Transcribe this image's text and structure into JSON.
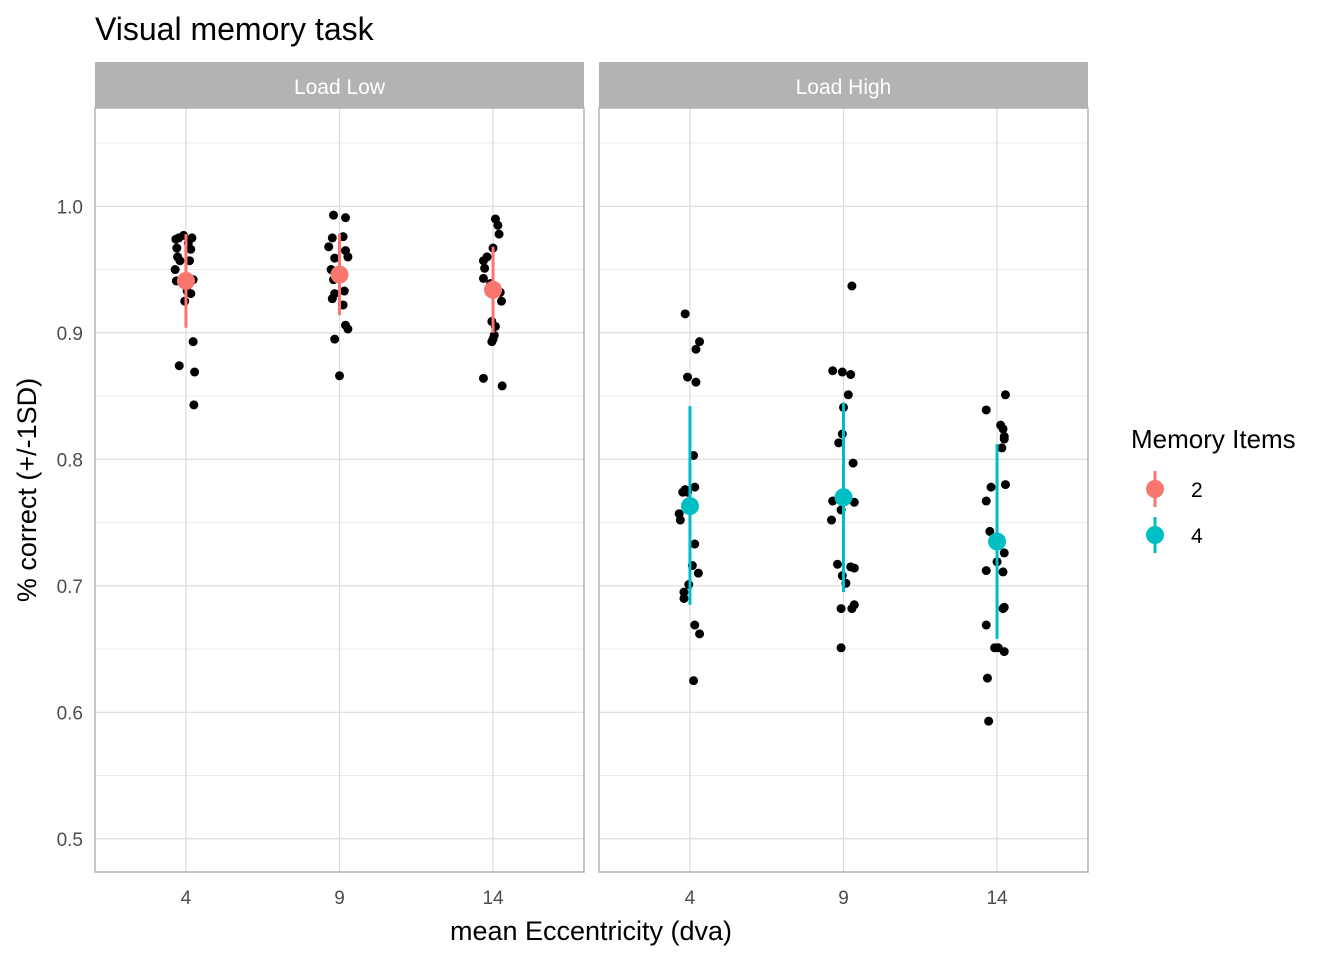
{
  "chart_data": {
    "type": "scatter",
    "title": "Visual memory task",
    "xlabel": "mean Eccentricity (dva)",
    "ylabel": "% correct (+/-1SD)",
    "x_ticks": [
      "4",
      "9",
      "14"
    ],
    "y_ticks": [
      "0.5",
      "0.6",
      "0.7",
      "0.8",
      "0.9",
      "1.0"
    ],
    "ylim": [
      0.475,
      1.078
    ],
    "grid": true,
    "legend": {
      "title": "Memory Items",
      "position": "right",
      "items": [
        {
          "label": "2",
          "color": "#F8766D"
        },
        {
          "label": "4",
          "color": "#00BFC4"
        }
      ]
    },
    "panels": [
      {
        "label": "Load Low",
        "memory_items": "2",
        "color": "#F8766D",
        "summary": [
          {
            "x": 4,
            "mean": 0.941,
            "sd_low": 0.904,
            "sd_high": 0.978
          },
          {
            "x": 9,
            "mean": 0.946,
            "sd_low": 0.914,
            "sd_high": 0.978
          },
          {
            "x": 14,
            "mean": 0.934,
            "sd_low": 0.9,
            "sd_high": 0.968
          }
        ],
        "points": [
          {
            "x": 4,
            "jx": -0.42,
            "y": 0.974
          },
          {
            "x": 4,
            "jx": -0.38,
            "y": 0.967
          },
          {
            "x": 4,
            "jx": -0.35,
            "y": 0.96
          },
          {
            "x": 4,
            "jx": -0.45,
            "y": 0.95
          },
          {
            "x": 4,
            "jx": -0.4,
            "y": 0.941
          },
          {
            "x": 4,
            "jx": -0.3,
            "y": 0.975
          },
          {
            "x": 4,
            "jx": -0.25,
            "y": 0.957
          },
          {
            "x": 4,
            "jx": -0.1,
            "y": 0.977
          },
          {
            "x": 4,
            "jx": 0.1,
            "y": 0.971
          },
          {
            "x": 4,
            "jx": 0.25,
            "y": 0.975
          },
          {
            "x": 4,
            "jx": 0.2,
            "y": 0.966
          },
          {
            "x": 4,
            "jx": 0.15,
            "y": 0.957
          },
          {
            "x": 4,
            "jx": 0.3,
            "y": 0.942
          },
          {
            "x": 4,
            "jx": 0.05,
            "y": 0.933
          },
          {
            "x": 4,
            "jx": -0.05,
            "y": 0.925
          },
          {
            "x": 4,
            "jx": 0.2,
            "y": 0.931
          },
          {
            "x": 4,
            "jx": 0.3,
            "y": 0.893
          },
          {
            "x": 4,
            "jx": -0.28,
            "y": 0.874
          },
          {
            "x": 4,
            "jx": 0.36,
            "y": 0.869
          },
          {
            "x": 4,
            "jx": 0.33,
            "y": 0.843
          },
          {
            "x": 9,
            "jx": -0.25,
            "y": 0.993
          },
          {
            "x": 9,
            "jx": 0.25,
            "y": 0.991
          },
          {
            "x": 9,
            "jx": -0.3,
            "y": 0.975
          },
          {
            "x": 9,
            "jx": 0.15,
            "y": 0.976
          },
          {
            "x": 9,
            "jx": -0.45,
            "y": 0.968
          },
          {
            "x": 9,
            "jx": 0.25,
            "y": 0.965
          },
          {
            "x": 9,
            "jx": 0.35,
            "y": 0.96
          },
          {
            "x": 9,
            "jx": -0.2,
            "y": 0.959
          },
          {
            "x": 9,
            "jx": -0.35,
            "y": 0.95
          },
          {
            "x": 9,
            "jx": 0.05,
            "y": 0.948
          },
          {
            "x": 9,
            "jx": -0.25,
            "y": 0.942
          },
          {
            "x": 9,
            "jx": 0.2,
            "y": 0.933
          },
          {
            "x": 9,
            "jx": -0.2,
            "y": 0.931
          },
          {
            "x": 9,
            "jx": -0.3,
            "y": 0.927
          },
          {
            "x": 9,
            "jx": 0.15,
            "y": 0.922
          },
          {
            "x": 9,
            "jx": 0.25,
            "y": 0.906
          },
          {
            "x": 9,
            "jx": 0.35,
            "y": 0.903
          },
          {
            "x": 9,
            "jx": -0.2,
            "y": 0.895
          },
          {
            "x": 9,
            "jx": 0.0,
            "y": 0.866
          },
          {
            "x": 14,
            "jx": 0.1,
            "y": 0.99
          },
          {
            "x": 14,
            "jx": 0.2,
            "y": 0.985
          },
          {
            "x": 14,
            "jx": 0.25,
            "y": 0.978
          },
          {
            "x": 14,
            "jx": 0.0,
            "y": 0.967
          },
          {
            "x": 14,
            "jx": -0.25,
            "y": 0.96
          },
          {
            "x": 14,
            "jx": -0.4,
            "y": 0.957
          },
          {
            "x": 14,
            "jx": -0.35,
            "y": 0.951
          },
          {
            "x": 14,
            "jx": -0.4,
            "y": 0.943
          },
          {
            "x": 14,
            "jx": -0.1,
            "y": 0.939
          },
          {
            "x": 14,
            "jx": 0.1,
            "y": 0.934
          },
          {
            "x": 14,
            "jx": 0.3,
            "y": 0.932
          },
          {
            "x": 14,
            "jx": 0.35,
            "y": 0.925
          },
          {
            "x": 14,
            "jx": -0.05,
            "y": 0.909
          },
          {
            "x": 14,
            "jx": 0.1,
            "y": 0.905
          },
          {
            "x": 14,
            "jx": 0.05,
            "y": 0.898
          },
          {
            "x": 14,
            "jx": -0.05,
            "y": 0.893
          },
          {
            "x": 14,
            "jx": 0.0,
            "y": 0.895
          },
          {
            "x": 14,
            "jx": -0.4,
            "y": 0.864
          },
          {
            "x": 14,
            "jx": 0.38,
            "y": 0.858
          }
        ]
      },
      {
        "label": "Load High",
        "memory_items": "4",
        "color": "#00BFC4",
        "summary": [
          {
            "x": 4,
            "mean": 0.763,
            "sd_low": 0.685,
            "sd_high": 0.842
          },
          {
            "x": 9,
            "mean": 0.77,
            "sd_low": 0.695,
            "sd_high": 0.845
          },
          {
            "x": 14,
            "mean": 0.735,
            "sd_low": 0.658,
            "sd_high": 0.812
          }
        ],
        "points": [
          {
            "x": 4,
            "jx": -0.2,
            "y": 0.915
          },
          {
            "x": 4,
            "jx": 0.4,
            "y": 0.893
          },
          {
            "x": 4,
            "jx": 0.25,
            "y": 0.887
          },
          {
            "x": 4,
            "jx": -0.1,
            "y": 0.865
          },
          {
            "x": 4,
            "jx": 0.25,
            "y": 0.861
          },
          {
            "x": 4,
            "jx": 0.15,
            "y": 0.803
          },
          {
            "x": 4,
            "jx": 0.2,
            "y": 0.778
          },
          {
            "x": 4,
            "jx": -0.2,
            "y": 0.776
          },
          {
            "x": 4,
            "jx": -0.3,
            "y": 0.774
          },
          {
            "x": 4,
            "jx": -0.1,
            "y": 0.774
          },
          {
            "x": 4,
            "jx": -0.45,
            "y": 0.757
          },
          {
            "x": 4,
            "jx": -0.4,
            "y": 0.752
          },
          {
            "x": 4,
            "jx": 0.2,
            "y": 0.733
          },
          {
            "x": 4,
            "jx": 0.1,
            "y": 0.716
          },
          {
            "x": 4,
            "jx": 0.35,
            "y": 0.71
          },
          {
            "x": 4,
            "jx": -0.05,
            "y": 0.701
          },
          {
            "x": 4,
            "jx": -0.25,
            "y": 0.695
          },
          {
            "x": 4,
            "jx": -0.25,
            "y": 0.69
          },
          {
            "x": 4,
            "jx": 0.2,
            "y": 0.669
          },
          {
            "x": 4,
            "jx": 0.4,
            "y": 0.662
          },
          {
            "x": 4,
            "jx": 0.15,
            "y": 0.625
          },
          {
            "x": 9,
            "jx": 0.35,
            "y": 0.937
          },
          {
            "x": 9,
            "jx": -0.45,
            "y": 0.87
          },
          {
            "x": 9,
            "jx": -0.05,
            "y": 0.869
          },
          {
            "x": 9,
            "jx": 0.3,
            "y": 0.867
          },
          {
            "x": 9,
            "jx": 0.2,
            "y": 0.851
          },
          {
            "x": 9,
            "jx": 0.0,
            "y": 0.841
          },
          {
            "x": 9,
            "jx": -0.05,
            "y": 0.82
          },
          {
            "x": 9,
            "jx": -0.2,
            "y": 0.813
          },
          {
            "x": 9,
            "jx": 0.4,
            "y": 0.797
          },
          {
            "x": 9,
            "jx": -0.45,
            "y": 0.767
          },
          {
            "x": 9,
            "jx": 0.45,
            "y": 0.766
          },
          {
            "x": 9,
            "jx": -0.1,
            "y": 0.76
          },
          {
            "x": 9,
            "jx": -0.5,
            "y": 0.752
          },
          {
            "x": 9,
            "jx": -0.25,
            "y": 0.717
          },
          {
            "x": 9,
            "jx": 0.3,
            "y": 0.715
          },
          {
            "x": 9,
            "jx": 0.45,
            "y": 0.714
          },
          {
            "x": 9,
            "jx": -0.05,
            "y": 0.708
          },
          {
            "x": 9,
            "jx": 0.1,
            "y": 0.702
          },
          {
            "x": 9,
            "jx": 0.45,
            "y": 0.685
          },
          {
            "x": 9,
            "jx": 0.35,
            "y": 0.682
          },
          {
            "x": 9,
            "jx": -0.1,
            "y": 0.682
          },
          {
            "x": 9,
            "jx": -0.1,
            "y": 0.651
          },
          {
            "x": 14,
            "jx": 0.35,
            "y": 0.851
          },
          {
            "x": 14,
            "jx": -0.45,
            "y": 0.839
          },
          {
            "x": 14,
            "jx": 0.15,
            "y": 0.827
          },
          {
            "x": 14,
            "jx": 0.25,
            "y": 0.824
          },
          {
            "x": 14,
            "jx": 0.3,
            "y": 0.818
          },
          {
            "x": 14,
            "jx": 0.3,
            "y": 0.816
          },
          {
            "x": 14,
            "jx": 0.2,
            "y": 0.809
          },
          {
            "x": 14,
            "jx": 0.35,
            "y": 0.78
          },
          {
            "x": 14,
            "jx": -0.25,
            "y": 0.778
          },
          {
            "x": 14,
            "jx": -0.45,
            "y": 0.767
          },
          {
            "x": 14,
            "jx": -0.3,
            "y": 0.743
          },
          {
            "x": 14,
            "jx": 0.3,
            "y": 0.726
          },
          {
            "x": 14,
            "jx": 0.0,
            "y": 0.719
          },
          {
            "x": 14,
            "jx": -0.45,
            "y": 0.712
          },
          {
            "x": 14,
            "jx": 0.25,
            "y": 0.711
          },
          {
            "x": 14,
            "jx": 0.3,
            "y": 0.683
          },
          {
            "x": 14,
            "jx": 0.25,
            "y": 0.682
          },
          {
            "x": 14,
            "jx": -0.45,
            "y": 0.669
          },
          {
            "x": 14,
            "jx": -0.1,
            "y": 0.651
          },
          {
            "x": 14,
            "jx": 0.05,
            "y": 0.651
          },
          {
            "x": 14,
            "jx": 0.3,
            "y": 0.648
          },
          {
            "x": 14,
            "jx": -0.4,
            "y": 0.627
          },
          {
            "x": 14,
            "jx": -0.35,
            "y": 0.593
          }
        ]
      }
    ]
  }
}
